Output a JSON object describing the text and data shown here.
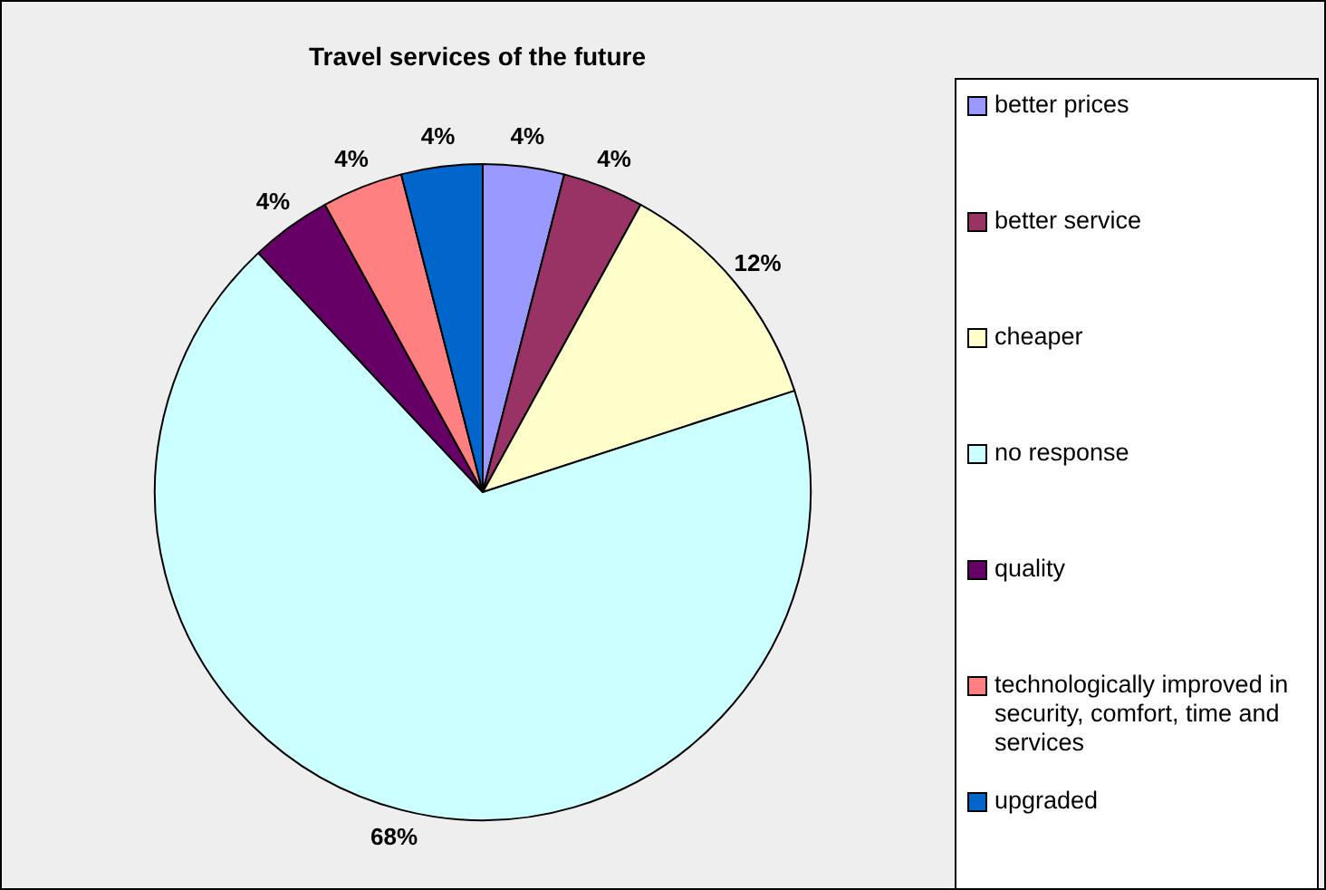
{
  "chart_data": {
    "type": "pie",
    "title": "Travel services of the future",
    "categories": [
      "better prices",
      "better service",
      "cheaper",
      "no response",
      "quality",
      "technologically improved in security, comfort, time and services",
      "upgraded"
    ],
    "values": [
      4,
      4,
      12,
      68,
      4,
      4,
      4
    ],
    "value_labels": [
      "4%",
      "4%",
      "12%",
      "68%",
      "4%",
      "4%",
      "4%"
    ],
    "colors": [
      "#9999ff",
      "#993366",
      "#ffffcc",
      "#ccffff",
      "#660066",
      "#ff8080",
      "#0066cc"
    ],
    "legend": "right"
  }
}
